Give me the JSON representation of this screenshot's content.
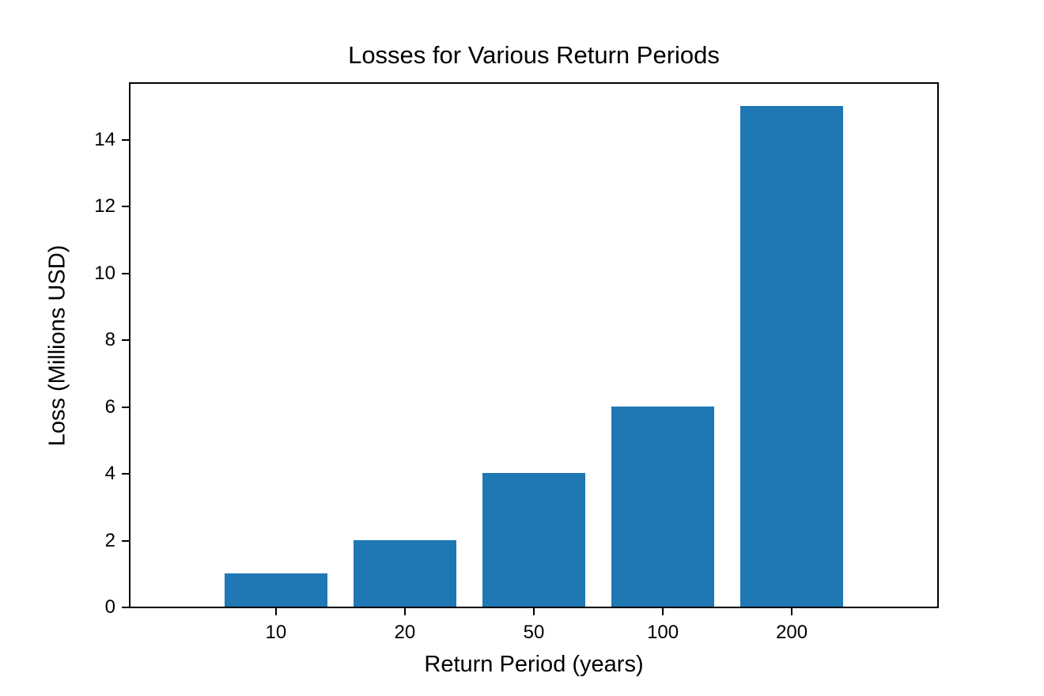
{
  "chart_data": {
    "type": "bar",
    "title": "Losses for Various Return Periods",
    "xlabel": "Return Period (years)",
    "ylabel": "Loss (Millions USD)",
    "categories": [
      "10",
      "20",
      "50",
      "100",
      "200"
    ],
    "values": [
      1,
      2,
      4,
      6,
      15
    ],
    "yticks": [
      0,
      2,
      4,
      6,
      8,
      10,
      12,
      14
    ],
    "ylim": [
      0,
      15.75
    ],
    "bar_color": "#1f77b4",
    "axis_color": "#000000",
    "background_color": "#ffffff",
    "grid": false,
    "legend_position": "none"
  }
}
